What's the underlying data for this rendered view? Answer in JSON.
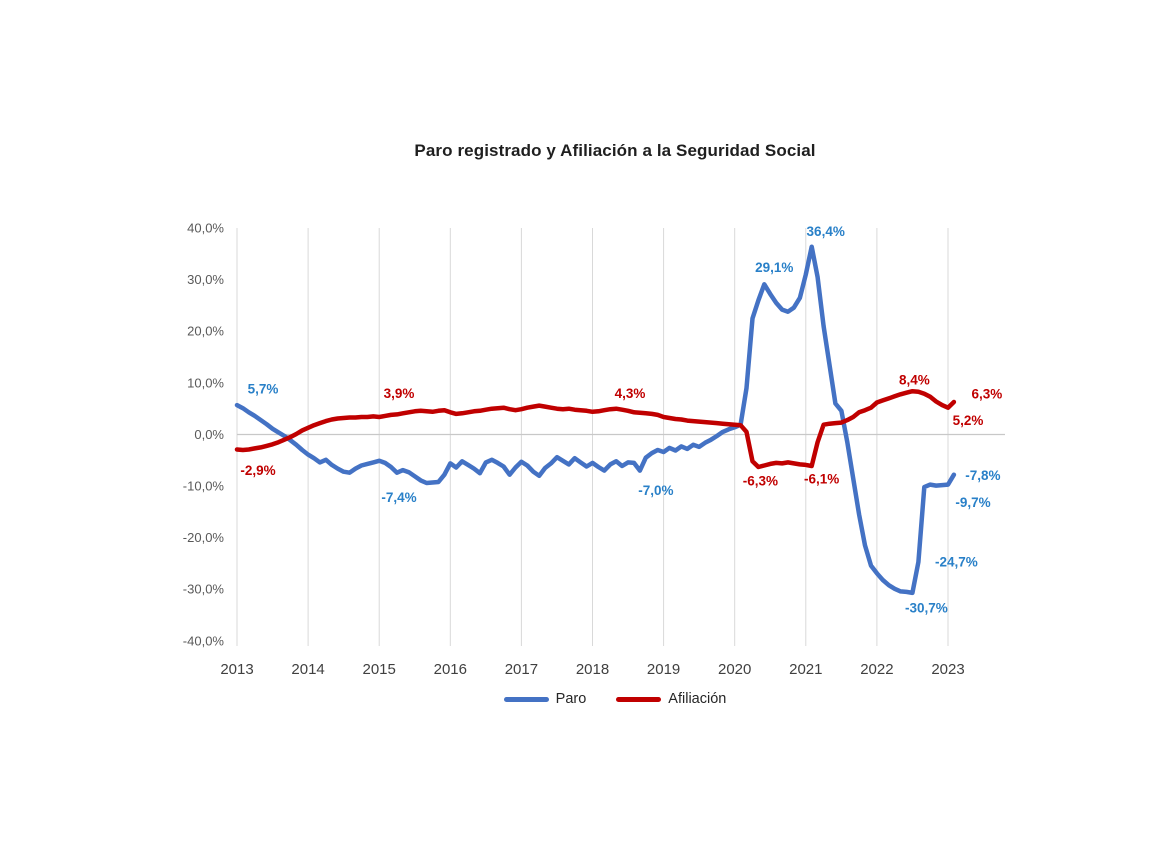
{
  "title": "Paro registrado y Afiliación a la Seguridad Social",
  "chart_data": {
    "type": "line",
    "title": "Paro registrado y Afiliación a la Seguridad Social",
    "frequency": "monthly",
    "x_start": "2013-01",
    "x_end": "2023-02",
    "x_tick_labels": [
      "2013",
      "2014",
      "2015",
      "2016",
      "2017",
      "2018",
      "2019",
      "2020",
      "2021",
      "2022",
      "2023"
    ],
    "y_tick_labels": [
      "40,0%",
      "30,0%",
      "20,0%",
      "10,0%",
      "0,0%",
      "-10,0%",
      "-20,0%",
      "-30,0%",
      "-40,0%"
    ],
    "ylim": [
      -40,
      40
    ],
    "grid": {
      "vertical_year_lines": true,
      "zero_line": true,
      "horizontal_value_lines": false
    },
    "legend_position": "bottom-center",
    "series": [
      {
        "name": "Paro",
        "color": "#4472C4",
        "label_color": "#2980C8",
        "values": [
          5.7,
          5.1,
          4.3,
          3.6,
          2.8,
          2.0,
          1.1,
          0.4,
          -0.3,
          -1.1,
          -2.0,
          -3.0,
          -3.9,
          -4.6,
          -5.4,
          -4.9,
          -5.9,
          -6.6,
          -7.2,
          -7.4,
          -6.6,
          -6.0,
          -5.7,
          -5.4,
          -5.1,
          -5.5,
          -6.3,
          -7.4,
          -6.9,
          -7.3,
          -8.1,
          -8.9,
          -9.4,
          -9.3,
          -9.2,
          -7.8,
          -5.6,
          -6.4,
          -5.2,
          -5.9,
          -6.6,
          -7.5,
          -5.4,
          -4.9,
          -5.5,
          -6.2,
          -7.8,
          -6.4,
          -5.3,
          -6.0,
          -7.2,
          -8.0,
          -6.5,
          -5.6,
          -4.4,
          -5.1,
          -5.8,
          -4.6,
          -5.4,
          -6.2,
          -5.5,
          -6.3,
          -7.0,
          -5.8,
          -5.2,
          -6.1,
          -5.4,
          -5.5,
          -7.0,
          -4.5,
          -3.6,
          -3.0,
          -3.4,
          -2.6,
          -3.1,
          -2.3,
          -2.8,
          -2.0,
          -2.4,
          -1.6,
          -1.0,
          -0.3,
          0.5,
          1.0,
          1.4,
          1.9,
          9.0,
          22.5,
          26.0,
          29.1,
          27.2,
          25.5,
          24.2,
          23.8,
          24.6,
          26.5,
          31.0,
          36.4,
          30.5,
          21.0,
          13.5,
          6.0,
          4.6,
          -1.5,
          -8.5,
          -15.5,
          -21.5,
          -25.4,
          -26.9,
          -28.2,
          -29.2,
          -29.9,
          -30.4,
          -30.5,
          -30.7,
          -24.7,
          -10.2,
          -9.7,
          -9.9,
          -9.8,
          -9.7,
          -7.8
        ]
      },
      {
        "name": "Afiliación",
        "color": "#C00000",
        "label_color": "#C00000",
        "values": [
          -2.9,
          -3.0,
          -2.9,
          -2.7,
          -2.5,
          -2.2,
          -1.9,
          -1.5,
          -1.0,
          -0.5,
          0.1,
          0.8,
          1.3,
          1.8,
          2.2,
          2.6,
          2.9,
          3.1,
          3.2,
          3.3,
          3.3,
          3.4,
          3.4,
          3.5,
          3.4,
          3.6,
          3.8,
          3.9,
          4.1,
          4.3,
          4.5,
          4.6,
          4.5,
          4.4,
          4.6,
          4.7,
          4.3,
          4.0,
          4.1,
          4.3,
          4.5,
          4.6,
          4.8,
          5.0,
          5.1,
          5.2,
          4.9,
          4.7,
          4.9,
          5.2,
          5.4,
          5.6,
          5.4,
          5.2,
          5.0,
          4.9,
          5.0,
          4.8,
          4.7,
          4.6,
          4.4,
          4.5,
          4.7,
          4.9,
          5.0,
          4.8,
          4.6,
          4.3,
          4.2,
          4.1,
          4.0,
          3.8,
          3.4,
          3.2,
          3.0,
          2.9,
          2.7,
          2.6,
          2.5,
          2.4,
          2.3,
          2.2,
          2.1,
          2.0,
          1.9,
          1.8,
          0.5,
          -5.2,
          -6.3,
          -6.0,
          -5.7,
          -5.5,
          -5.6,
          -5.4,
          -5.6,
          -5.8,
          -5.9,
          -6.1,
          -1.5,
          1.9,
          2.1,
          2.2,
          2.3,
          2.8,
          3.4,
          4.3,
          4.7,
          5.2,
          6.2,
          6.6,
          7.0,
          7.4,
          7.8,
          8.1,
          8.4,
          8.3,
          7.9,
          7.3,
          6.4,
          5.7,
          5.2,
          6.3
        ]
      }
    ],
    "annotations": [
      {
        "series": "Paro",
        "month": "2013-01",
        "m": 0,
        "value": 5.7,
        "text": "5,7%",
        "offset": [
          26,
          -16
        ]
      },
      {
        "series": "Paro",
        "month": "2015-04",
        "m": 27,
        "value": -7.4,
        "text": "-7,4%",
        "offset": [
          2,
          25
        ]
      },
      {
        "series": "Paro",
        "month": "2018-09",
        "m": 68,
        "value": -7.0,
        "text": "-7,0%",
        "offset": [
          16,
          20
        ]
      },
      {
        "series": "Paro",
        "month": "2020-06",
        "m": 89,
        "value": 29.1,
        "text": "29,1%",
        "offset": [
          10,
          -17
        ]
      },
      {
        "series": "Paro",
        "month": "2021-02",
        "m": 97,
        "value": 36.4,
        "text": "36,4%",
        "offset": [
          14,
          -15
        ]
      },
      {
        "series": "Paro",
        "month": "2022-07",
        "m": 114,
        "value": -30.7,
        "text": "-30,7%",
        "offset": [
          14,
          15
        ]
      },
      {
        "series": "Paro",
        "month": "2022-08",
        "m": 115,
        "value": -24.7,
        "text": "-24,7%",
        "offset": [
          38,
          0
        ]
      },
      {
        "series": "Paro",
        "month": "2023-01",
        "m": 120,
        "value": -9.7,
        "text": "-9,7%",
        "offset": [
          25,
          18
        ]
      },
      {
        "series": "Paro",
        "month": "2023-02",
        "m": 121,
        "value": -7.8,
        "text": "-7,8%",
        "offset": [
          29,
          1
        ]
      },
      {
        "series": "Afiliación",
        "month": "2013-01",
        "m": 0,
        "value": -2.9,
        "text": "-2,9%",
        "offset": [
          21,
          21
        ]
      },
      {
        "series": "Afiliación",
        "month": "2015-04",
        "m": 27,
        "value": 3.9,
        "text": "3,9%",
        "offset": [
          2,
          -21
        ]
      },
      {
        "series": "Afiliación",
        "month": "2018-08",
        "m": 67,
        "value": 4.3,
        "text": "4,3%",
        "offset": [
          -4,
          -19
        ]
      },
      {
        "series": "Afiliación",
        "month": "2020-05",
        "m": 88,
        "value": -6.3,
        "text": "-6,3%",
        "offset": [
          2,
          14
        ]
      },
      {
        "series": "Afiliación",
        "month": "2021-02",
        "m": 97,
        "value": -6.1,
        "text": "-6,1%",
        "offset": [
          10,
          13
        ]
      },
      {
        "series": "Afiliación",
        "month": "2022-07",
        "m": 114,
        "value": 8.4,
        "text": "8,4%",
        "offset": [
          2,
          -11
        ]
      },
      {
        "series": "Afiliación",
        "month": "2023-01",
        "m": 120,
        "value": 5.2,
        "text": "5,2%",
        "offset": [
          20,
          13
        ]
      },
      {
        "series": "Afiliación",
        "month": "2023-02",
        "m": 121,
        "value": 6.3,
        "text": "6,3%",
        "offset": [
          33,
          -8
        ]
      }
    ],
    "legend": [
      {
        "label": "Paro",
        "color": "#4472C4"
      },
      {
        "label": "Afiliación",
        "color": "#C00000"
      }
    ]
  },
  "colors": {
    "gridline": "#D9D9D9",
    "zero_line": "#C8C8C8",
    "y_tick_text": "#595959",
    "x_tick_text": "#404040",
    "title_text": "#1F1F1F",
    "legend_text": "#262626",
    "background": "#FFFFFF"
  }
}
